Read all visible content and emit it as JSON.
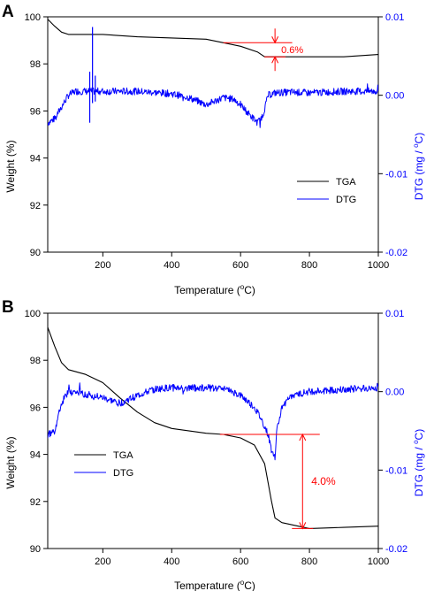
{
  "chart_data": [
    {
      "type": "line",
      "panel_label": "A",
      "xlabel": "Temperature (",
      "xlabel_sup": "o",
      "xlabel_end": "C)",
      "ylabel": "Weight (%)",
      "y2label": "DTG (mg / ",
      "y2label_sup": "o",
      "y2label_end": "C)",
      "xlim": [
        40,
        1000
      ],
      "ylim": [
        90,
        100
      ],
      "y2lim": [
        -0.02,
        0.01
      ],
      "xticks": [
        200,
        400,
        600,
        800,
        1000
      ],
      "yticks": [
        90,
        92,
        94,
        96,
        98,
        100
      ],
      "y2ticks": [
        -0.02,
        -0.01,
        0.0,
        0.01
      ],
      "y2ticklabels": [
        "-0.02",
        "-0.01",
        "0.00",
        "0.01"
      ],
      "legend_position": "lower-right",
      "series": [
        {
          "name": "TGA",
          "axis": "left",
          "color": "#000000",
          "x": [
            40,
            60,
            80,
            100,
            200,
            300,
            400,
            500,
            550,
            600,
            650,
            670,
            700,
            800,
            900,
            1000
          ],
          "y": [
            99.9,
            99.6,
            99.35,
            99.25,
            99.25,
            99.15,
            99.1,
            99.05,
            98.9,
            98.75,
            98.5,
            98.3,
            98.3,
            98.3,
            98.3,
            98.4
          ]
        },
        {
          "name": "DTG",
          "axis": "right",
          "color": "#0000ff",
          "x": [
            40,
            60,
            80,
            100,
            120,
            150,
            200,
            300,
            400,
            450,
            500,
            550,
            580,
            600,
            620,
            640,
            650,
            665,
            680,
            700,
            750,
            800,
            900,
            1000
          ],
          "y": [
            -0.0035,
            -0.003,
            -0.0015,
            0.0,
            0.0005,
            0.0005,
            0.0005,
            0.0005,
            0.0002,
            -0.0003,
            -0.0012,
            -0.0003,
            -0.0005,
            -0.0012,
            -0.0022,
            -0.0031,
            -0.0035,
            -0.0025,
            0.0,
            0.0003,
            0.0004,
            0.0003,
            0.0005,
            0.0005
          ]
        }
      ],
      "spikes": [
        {
          "x": 162,
          "min": -0.0035,
          "max": 0.003
        },
        {
          "x": 170,
          "min": -0.001,
          "max": 0.0087
        },
        {
          "x": 178,
          "min": -0.0008,
          "max": 0.0025
        }
      ],
      "annotation": {
        "text": "0.6%",
        "color": "#ff0000",
        "x": 700,
        "y_top": 98.9,
        "y_bottom": 98.3,
        "line_from_x": 550,
        "line_to_x": 750
      }
    },
    {
      "type": "line",
      "panel_label": "B",
      "xlabel": "Temperature (",
      "xlabel_sup": "o",
      "xlabel_end": "C)",
      "ylabel": "Weight (%)",
      "y2label": "DTG (mg / ",
      "y2label_sup": "o",
      "y2label_end": "C)",
      "xlim": [
        40,
        1000
      ],
      "ylim": [
        90,
        100
      ],
      "y2lim": [
        -0.02,
        0.01
      ],
      "xticks": [
        200,
        400,
        600,
        800,
        1000
      ],
      "yticks": [
        90,
        92,
        94,
        96,
        98,
        100
      ],
      "y2ticks": [
        -0.02,
        -0.01,
        0.0,
        0.01
      ],
      "y2ticklabels": [
        "-0.02",
        "-0.01",
        "0.00",
        "0.01"
      ],
      "legend_position": "lower-left",
      "series": [
        {
          "name": "TGA",
          "axis": "left",
          "color": "#000000",
          "x": [
            40,
            60,
            80,
            100,
            150,
            200,
            250,
            300,
            350,
            400,
            500,
            550,
            600,
            640,
            670,
            690,
            700,
            720,
            800,
            900,
            1000
          ],
          "y": [
            99.4,
            98.6,
            97.9,
            97.6,
            97.4,
            97.05,
            96.4,
            95.8,
            95.35,
            95.1,
            94.9,
            94.85,
            94.7,
            94.4,
            93.6,
            92.0,
            91.3,
            91.1,
            90.85,
            90.9,
            90.95
          ]
        },
        {
          "name": "DTG",
          "axis": "right",
          "color": "#0000ff",
          "x": [
            40,
            60,
            80,
            100,
            150,
            200,
            250,
            300,
            350,
            400,
            450,
            500,
            550,
            600,
            640,
            660,
            680,
            690,
            700,
            705,
            720,
            750,
            800,
            900,
            1000
          ],
          "y": [
            -0.0055,
            -0.005,
            -0.0015,
            0.0,
            -0.0003,
            -0.0008,
            -0.0015,
            -0.0005,
            0.0003,
            0.0005,
            0.0005,
            0.0005,
            0.0005,
            -0.0005,
            -0.002,
            -0.0035,
            -0.0055,
            -0.0075,
            -0.0085,
            -0.0048,
            -0.002,
            -0.0005,
            0.0,
            0.0003,
            0.0005
          ]
        }
      ],
      "spikes": [],
      "annotation": {
        "text": "4.0%",
        "color": "#ff0000",
        "x": 780,
        "y_top": 94.85,
        "y_bottom": 90.85,
        "line_from_x": 540,
        "line_to_x": 830
      }
    }
  ]
}
